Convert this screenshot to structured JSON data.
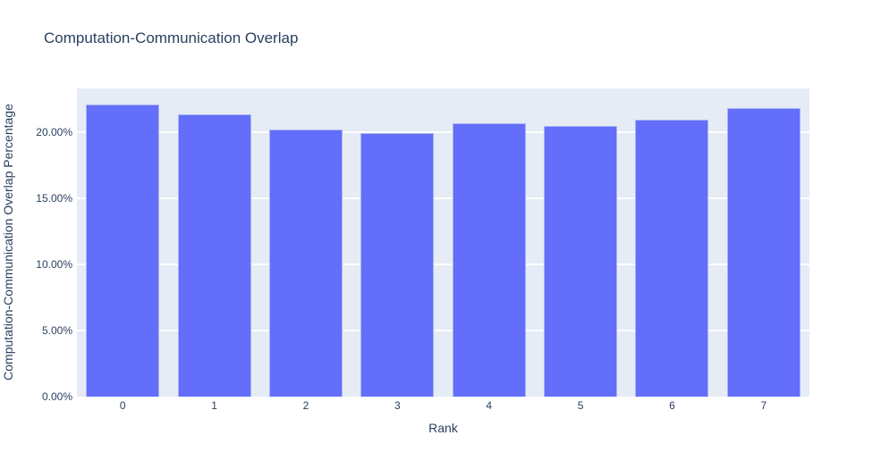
{
  "chart_data": {
    "type": "bar",
    "title": "Computation-Communication Overlap",
    "xlabel": "Rank",
    "ylabel": "Computation-Communication Overlap Percentage",
    "categories": [
      "0",
      "1",
      "2",
      "3",
      "4",
      "5",
      "6",
      "7"
    ],
    "values": [
      22.08,
      21.33,
      20.17,
      19.93,
      20.7,
      20.49,
      20.95,
      21.82
    ],
    "ylim": [
      0,
      23.31
    ],
    "yticks": [
      {
        "label": "0.00%",
        "value": 0
      },
      {
        "label": "5.00%",
        "value": 5
      },
      {
        "label": "10.00%",
        "value": 10
      },
      {
        "label": "15.00%",
        "value": 15
      },
      {
        "label": "20.00%",
        "value": 20
      }
    ],
    "grid": true,
    "legend": "none",
    "colors": {
      "bar_fill": "#636efa",
      "bar_edge": "#aab3f3",
      "plot_background": "#e5ecf6",
      "gridline": "#ffffff",
      "text": "#2a3f5f"
    }
  }
}
